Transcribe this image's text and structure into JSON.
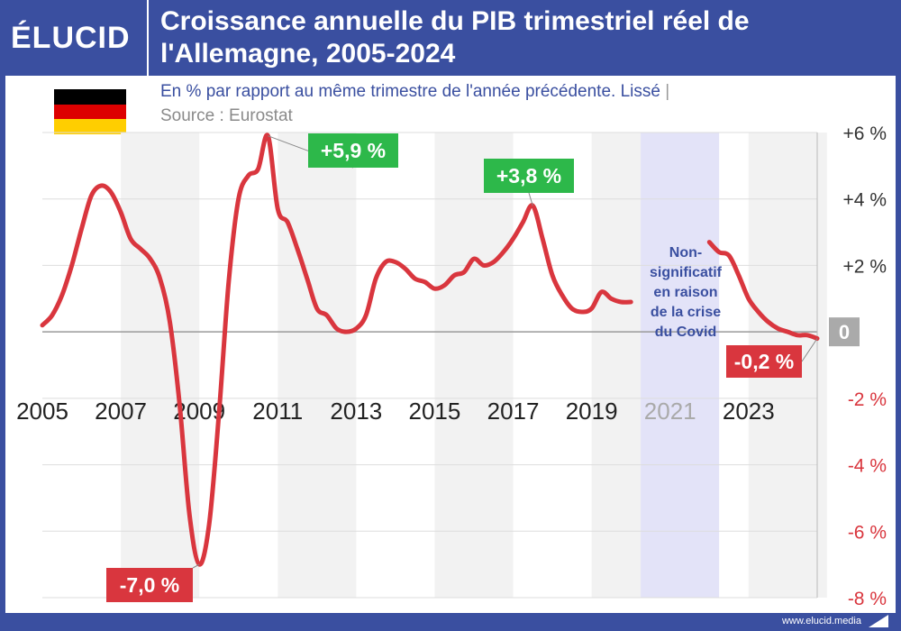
{
  "brand": {
    "logo_text": "ÉLUCID",
    "footer_url": "www.elucid.media"
  },
  "colors": {
    "primary": "#3a4fa0",
    "line": "#d9363e",
    "positive": "#2db84a",
    "negative": "#d9363e",
    "covid_band": "#e3e3f8",
    "stripe": "#f2f2f2",
    "zero_badge": "#aaaaaa",
    "pos_tick": "#333333",
    "neg_tick": "#d9363e"
  },
  "chart_data": {
    "type": "line",
    "title": "Croissance annuelle du PIB trimestriel réel de l'Allemagne, 2005-2024",
    "subtitle": "En % par rapport au même trimestre de l'année précédente. Lissé",
    "source": "Source : Eurostat",
    "xlim": [
      2005,
      2024.75
    ],
    "ylim": [
      -8,
      6
    ],
    "x_tick_labels": [
      "2005",
      "2007",
      "2009",
      "2011",
      "2013",
      "2015",
      "2017",
      "2019",
      "2021",
      "2023"
    ],
    "y_ticks": [
      {
        "value": 6,
        "label": "+6 %"
      },
      {
        "value": 4,
        "label": "+4 %"
      },
      {
        "value": 2,
        "label": "+2 %"
      },
      {
        "value": 0,
        "label": "0"
      },
      {
        "value": -2,
        "label": "-2 %"
      },
      {
        "value": -4,
        "label": "-4 %"
      },
      {
        "value": -6,
        "label": "-6 %"
      },
      {
        "value": -8,
        "label": "-8 %"
      }
    ],
    "segments": [
      {
        "x": [
          2005,
          2005.25,
          2005.5,
          2005.75,
          2006,
          2006.25,
          2006.5,
          2006.75,
          2007,
          2007.25,
          2007.5,
          2007.75,
          2008,
          2008.25,
          2008.5,
          2008.75,
          2009,
          2009.25,
          2009.5,
          2009.75,
          2010,
          2010.25,
          2010.5,
          2010.75,
          2011,
          2011.25,
          2011.5,
          2011.75,
          2012,
          2012.25,
          2012.5,
          2012.75,
          2013,
          2013.25,
          2013.5,
          2013.75,
          2014,
          2014.25,
          2014.5,
          2014.75,
          2015,
          2015.25,
          2015.5,
          2015.75,
          2016,
          2016.25,
          2016.5,
          2016.75,
          2017,
          2017.25,
          2017.5,
          2017.75,
          2018,
          2018.25,
          2018.5,
          2018.75,
          2019,
          2019.25,
          2019.5,
          2019.75,
          2020
        ],
        "y": [
          0.2,
          0.5,
          1.1,
          2.0,
          3.1,
          4.1,
          4.4,
          4.2,
          3.6,
          2.8,
          2.5,
          2.2,
          1.6,
          0.3,
          -2.2,
          -5.5,
          -7.0,
          -5.8,
          -2.5,
          1.5,
          4.0,
          4.7,
          4.9,
          5.9,
          3.7,
          3.3,
          2.5,
          1.6,
          0.7,
          0.5,
          0.1,
          0.0,
          0.1,
          0.5,
          1.6,
          2.1,
          2.1,
          1.9,
          1.6,
          1.5,
          1.3,
          1.4,
          1.7,
          1.8,
          2.2,
          2.0,
          2.1,
          2.4,
          2.8,
          3.3,
          3.8,
          2.8,
          1.7,
          1.1,
          0.7,
          0.6,
          0.7,
          1.2,
          1.0,
          0.9,
          0.9
        ]
      },
      {
        "x": [
          2022,
          2022.25,
          2022.5,
          2022.75,
          2023,
          2023.25,
          2023.5,
          2023.75,
          2024,
          2024.25,
          2024.5,
          2024.75
        ],
        "y": [
          2.7,
          2.4,
          2.3,
          1.7,
          1.0,
          0.6,
          0.3,
          0.1,
          0.0,
          -0.1,
          -0.1,
          -0.2
        ]
      }
    ],
    "covid_band": {
      "x_from": 2020.25,
      "x_to": 2022.25,
      "label": "Non-significatif en raison de la crise du Covid"
    },
    "annotations": [
      {
        "label": "+5,9 %",
        "x": 2010.75,
        "y": 5.9,
        "kind": "positive"
      },
      {
        "label": "+3,8 %",
        "x": 2017.5,
        "y": 3.8,
        "kind": "positive"
      },
      {
        "label": "-7,0 %",
        "x": 2009,
        "y": -7.0,
        "kind": "negative"
      },
      {
        "label": "-0,2 %",
        "x": 2024.75,
        "y": -0.2,
        "kind": "negative"
      }
    ],
    "grid": true,
    "legend": "none"
  }
}
